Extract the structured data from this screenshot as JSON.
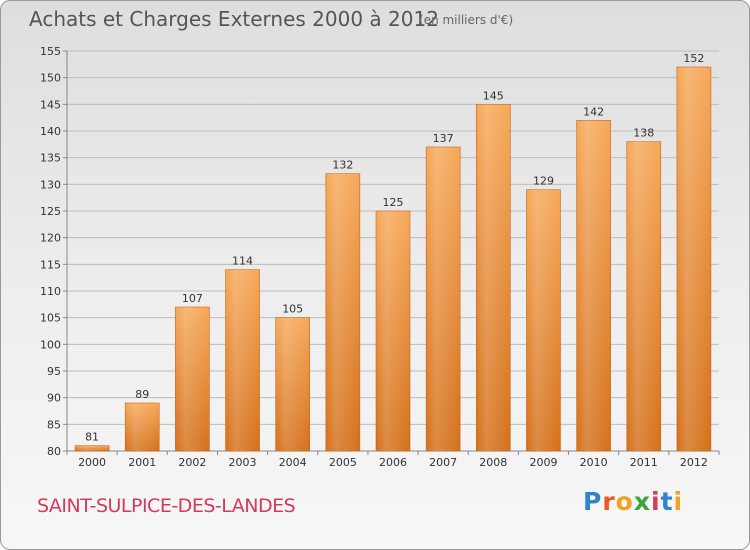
{
  "title": "Achats et Charges Externes 2000 à 2012",
  "subtitle": "(en milliers d'€)",
  "place": "SAINT-SULPICE-DES-LANDES",
  "logo": {
    "letters": [
      "P",
      "r",
      "o",
      "x",
      "i",
      "t",
      "i"
    ],
    "colors": [
      "#2e86c8",
      "#e8582a",
      "#f2a11f",
      "#3fa33f",
      "#d23a5e",
      "#2e86c8",
      "#f2a11f"
    ]
  },
  "colors": {
    "bar_top": "#f6a859",
    "bar_bottom": "#d4701a",
    "grid": "#bdbdbd",
    "title": "#555555",
    "place": "#d23a5e"
  },
  "chart_data": {
    "type": "bar",
    "title": "Achats et Charges Externes 2000 à 2012",
    "subtitle": "(en milliers d'€)",
    "categories": [
      "2000",
      "2001",
      "2002",
      "2003",
      "2004",
      "2005",
      "2006",
      "2007",
      "2008",
      "2009",
      "2010",
      "2011",
      "2012"
    ],
    "values": [
      81,
      89,
      107,
      114,
      105,
      132,
      125,
      137,
      145,
      129,
      142,
      138,
      152
    ],
    "value_labels": [
      "81",
      "89",
      "107",
      "114",
      "105",
      "132",
      "125",
      "137",
      "145",
      "129",
      "142",
      "138",
      "152"
    ],
    "ylim": [
      80,
      155
    ],
    "yticks": [
      80,
      85,
      90,
      95,
      100,
      105,
      110,
      115,
      120,
      125,
      130,
      135,
      140,
      145,
      150,
      155
    ],
    "grid": true,
    "xlabel": "",
    "ylabel": ""
  }
}
